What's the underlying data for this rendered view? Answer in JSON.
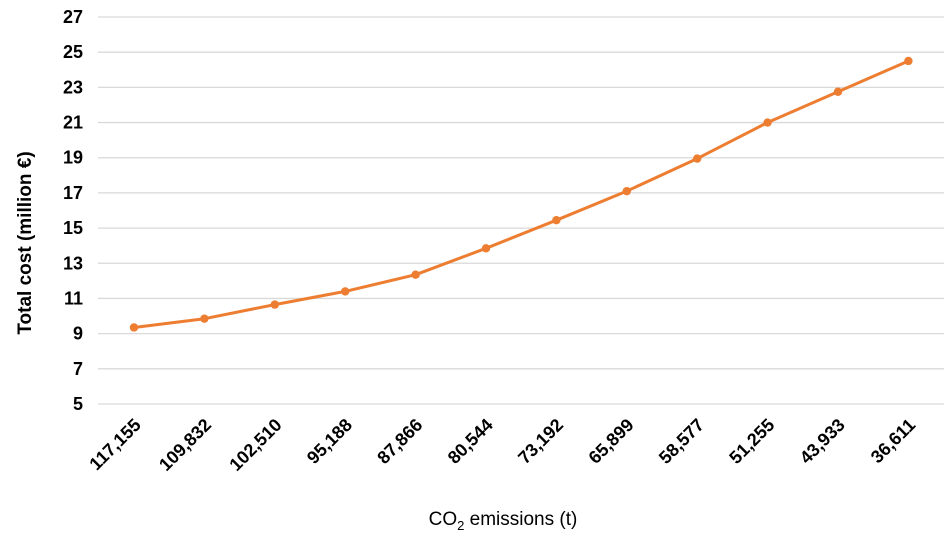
{
  "chart_data": {
    "type": "line",
    "title": "",
    "xlabel": {
      "prefix": "CO",
      "subscript": "2",
      "suffix": " emissions (t)"
    },
    "ylabel": "Total cost (million €)",
    "ylim": [
      5,
      27
    ],
    "yticks": [
      5,
      7,
      9,
      11,
      13,
      15,
      17,
      19,
      21,
      23,
      25,
      27
    ],
    "grid": true,
    "legend": "none",
    "categories": [
      "117,155",
      "109,832",
      "102,510",
      "95,188",
      "87,866",
      "80,544",
      "73,192",
      "65,899",
      "58,577",
      "51,255",
      "43,933",
      "36,611"
    ],
    "series": [
      {
        "color": "#ed7d31",
        "values": [
          9.35,
          9.85,
          10.65,
          11.4,
          12.35,
          13.85,
          15.45,
          17.1,
          18.95,
          21.0,
          22.75,
          24.5
        ]
      }
    ]
  }
}
